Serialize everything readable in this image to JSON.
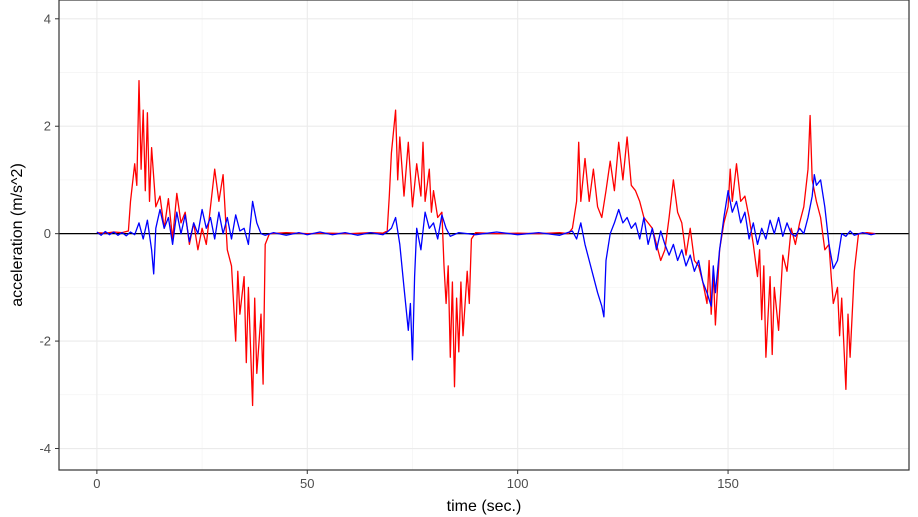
{
  "chart_data": {
    "type": "line",
    "title": "",
    "xlabel": "time (sec.)",
    "ylabel": "acceleration (m/s^2)",
    "xlim": [
      -9,
      193
    ],
    "ylim": [
      -4.4,
      4.35
    ],
    "x_ticks": [
      0,
      50,
      100,
      150
    ],
    "x_tick_labels": [
      "0",
      "50",
      "100",
      "150"
    ],
    "y_ticks": [
      -4,
      -2,
      0,
      2,
      4
    ],
    "y_tick_labels": [
      "-4",
      "-2",
      "0",
      "2",
      "4"
    ],
    "grid": true,
    "zero_line": true,
    "legend": "none",
    "colors": {
      "series_red": "#ff0000",
      "series_blue": "#0000ff",
      "grid": "#ebebeb",
      "zero_line": "#000000",
      "axis": "#333333"
    },
    "series": [
      {
        "color": "#ff0000",
        "points": [
          [
            0,
            0.02
          ],
          [
            2,
            0.01
          ],
          [
            4,
            0.03
          ],
          [
            6,
            0.02
          ],
          [
            7.5,
            0.05
          ],
          [
            8,
            0.6
          ],
          [
            9,
            1.3
          ],
          [
            9.5,
            0.9
          ],
          [
            10,
            2.85
          ],
          [
            10.5,
            1.2
          ],
          [
            11,
            2.3
          ],
          [
            11.5,
            0.8
          ],
          [
            12,
            2.25
          ],
          [
            12.5,
            0.6
          ],
          [
            13,
            1.6
          ],
          [
            14,
            0.5
          ],
          [
            15,
            0.7
          ],
          [
            16,
            0.1
          ],
          [
            17,
            0.65
          ],
          [
            18,
            -0.1
          ],
          [
            19,
            0.75
          ],
          [
            20,
            0.2
          ],
          [
            21,
            0.4
          ],
          [
            22,
            -0.2
          ],
          [
            23,
            0.2
          ],
          [
            24,
            -0.3
          ],
          [
            25,
            0.1
          ],
          [
            26,
            -0.2
          ],
          [
            27,
            0.5
          ],
          [
            28,
            1.2
          ],
          [
            29,
            0.6
          ],
          [
            30,
            1.1
          ],
          [
            31,
            -0.3
          ],
          [
            32,
            -0.6
          ],
          [
            33,
            -2.0
          ],
          [
            33.5,
            -0.7
          ],
          [
            34,
            -1.5
          ],
          [
            35,
            -0.8
          ],
          [
            35.5,
            -2.4
          ],
          [
            36,
            -1.0
          ],
          [
            37,
            -3.2
          ],
          [
            37.5,
            -1.2
          ],
          [
            38,
            -2.6
          ],
          [
            39,
            -1.5
          ],
          [
            39.5,
            -2.8
          ],
          [
            40,
            -0.2
          ],
          [
            41,
            0.0
          ],
          [
            45,
            0.02
          ],
          [
            50,
            0.0
          ],
          [
            55,
            0.01
          ],
          [
            60,
            0.0
          ],
          [
            65,
            0.02
          ],
          [
            68,
            0.01
          ],
          [
            69,
            0.05
          ],
          [
            69.5,
            0.7
          ],
          [
            70,
            1.5
          ],
          [
            71,
            2.3
          ],
          [
            71.5,
            1.0
          ],
          [
            72,
            1.8
          ],
          [
            73,
            0.7
          ],
          [
            74,
            1.7
          ],
          [
            75,
            0.5
          ],
          [
            76,
            1.3
          ],
          [
            77,
            0.7
          ],
          [
            77.5,
            1.7
          ],
          [
            78,
            0.6
          ],
          [
            79,
            1.2
          ],
          [
            79.5,
            0.4
          ],
          [
            80,
            0.8
          ],
          [
            81,
            0.3
          ],
          [
            82,
            0.4
          ],
          [
            82.5,
            -0.6
          ],
          [
            83,
            -1.3
          ],
          [
            83.5,
            -0.6
          ],
          [
            84,
            -2.3
          ],
          [
            84.5,
            -0.9
          ],
          [
            85,
            -2.85
          ],
          [
            85.5,
            -1.2
          ],
          [
            86,
            -2.2
          ],
          [
            86.5,
            -0.9
          ],
          [
            87,
            -1.9
          ],
          [
            88,
            -0.7
          ],
          [
            88.5,
            -1.3
          ],
          [
            89,
            -0.1
          ],
          [
            90,
            0.02
          ],
          [
            95,
            0.0
          ],
          [
            100,
            0.01
          ],
          [
            105,
            0.0
          ],
          [
            110,
            0.02
          ],
          [
            112,
            0.0
          ],
          [
            113,
            0.1
          ],
          [
            114,
            0.6
          ],
          [
            114.5,
            1.7
          ],
          [
            115,
            0.6
          ],
          [
            116,
            1.4
          ],
          [
            117,
            0.6
          ],
          [
            118,
            1.2
          ],
          [
            119,
            0.5
          ],
          [
            120,
            0.3
          ],
          [
            121,
            0.8
          ],
          [
            122,
            1.35
          ],
          [
            123,
            0.8
          ],
          [
            124,
            1.7
          ],
          [
            125,
            1.0
          ],
          [
            126,
            1.8
          ],
          [
            127,
            0.9
          ],
          [
            128,
            0.8
          ],
          [
            129,
            0.6
          ],
          [
            130,
            0.3
          ],
          [
            131,
            0.2
          ],
          [
            132,
            0.1
          ],
          [
            133,
            -0.2
          ],
          [
            134,
            -0.5
          ],
          [
            135,
            -0.3
          ],
          [
            136,
            0.3
          ],
          [
            137,
            1.0
          ],
          [
            138,
            0.4
          ],
          [
            139,
            0.2
          ],
          [
            140,
            -0.4
          ],
          [
            141,
            0.1
          ],
          [
            142,
            -0.5
          ],
          [
            143,
            -0.6
          ],
          [
            144,
            -0.9
          ],
          [
            145,
            -1.3
          ],
          [
            145.5,
            -0.5
          ],
          [
            146,
            -1.5
          ],
          [
            146.5,
            -0.7
          ],
          [
            147,
            -1.7
          ],
          [
            148,
            -0.3
          ],
          [
            149,
            0.2
          ],
          [
            150,
            0.5
          ],
          [
            150.5,
            1.2
          ],
          [
            151,
            0.6
          ],
          [
            152,
            1.3
          ],
          [
            153,
            0.6
          ],
          [
            154,
            0.7
          ],
          [
            155,
            0.3
          ],
          [
            156,
            -0.2
          ],
          [
            157,
            -0.8
          ],
          [
            157.5,
            -0.3
          ],
          [
            158,
            -1.6
          ],
          [
            158.5,
            -0.6
          ],
          [
            159,
            -2.3
          ],
          [
            160,
            -0.8
          ],
          [
            160.5,
            -2.25
          ],
          [
            161,
            -1.0
          ],
          [
            162,
            -1.8
          ],
          [
            163,
            -0.4
          ],
          [
            164,
            -0.7
          ],
          [
            165,
            0.1
          ],
          [
            166,
            -0.2
          ],
          [
            167,
            0.2
          ],
          [
            168,
            0.5
          ],
          [
            169,
            1.2
          ],
          [
            169.5,
            2.2
          ],
          [
            170,
            1.0
          ],
          [
            171,
            0.6
          ],
          [
            172,
            0.3
          ],
          [
            173,
            -0.3
          ],
          [
            174,
            -0.2
          ],
          [
            174.5,
            -0.8
          ],
          [
            175,
            -1.3
          ],
          [
            176,
            -1.0
          ],
          [
            176.5,
            -1.9
          ],
          [
            177,
            -1.2
          ],
          [
            178,
            -2.9
          ],
          [
            178.5,
            -1.5
          ],
          [
            179,
            -2.3
          ],
          [
            180,
            -0.7
          ],
          [
            181,
            0.0
          ],
          [
            183,
            0.02
          ],
          [
            185,
            0.0
          ]
        ]
      },
      {
        "color": "#0000ff",
        "points": [
          [
            0,
            0.03
          ],
          [
            1,
            -0.03
          ],
          [
            2,
            0.04
          ],
          [
            3,
            -0.02
          ],
          [
            4,
            0.03
          ],
          [
            5,
            -0.03
          ],
          [
            6,
            0.02
          ],
          [
            7,
            -0.04
          ],
          [
            8,
            0.03
          ],
          [
            9,
            -0.02
          ],
          [
            10,
            0.2
          ],
          [
            11,
            -0.1
          ],
          [
            12,
            0.25
          ],
          [
            13,
            -0.3
          ],
          [
            13.5,
            -0.75
          ],
          [
            14,
            0.1
          ],
          [
            15,
            0.45
          ],
          [
            16,
            0.1
          ],
          [
            17,
            0.3
          ],
          [
            18,
            -0.2
          ],
          [
            19,
            0.4
          ],
          [
            20,
            0.0
          ],
          [
            21,
            0.35
          ],
          [
            22,
            -0.15
          ],
          [
            23,
            0.2
          ],
          [
            24,
            0.0
          ],
          [
            25,
            0.45
          ],
          [
            26,
            0.1
          ],
          [
            27,
            0.3
          ],
          [
            28,
            -0.1
          ],
          [
            29,
            0.4
          ],
          [
            30,
            0.0
          ],
          [
            31,
            0.3
          ],
          [
            32,
            -0.1
          ],
          [
            33,
            0.35
          ],
          [
            34,
            0.05
          ],
          [
            35,
            0.1
          ],
          [
            36,
            -0.2
          ],
          [
            37,
            0.6
          ],
          [
            38,
            0.2
          ],
          [
            39,
            0.0
          ],
          [
            40,
            -0.03
          ],
          [
            42,
            0.02
          ],
          [
            45,
            -0.03
          ],
          [
            48,
            0.02
          ],
          [
            50,
            -0.02
          ],
          [
            53,
            0.03
          ],
          [
            56,
            -0.02
          ],
          [
            59,
            0.02
          ],
          [
            62,
            -0.03
          ],
          [
            65,
            0.02
          ],
          [
            68,
            -0.02
          ],
          [
            69,
            0.03
          ],
          [
            70,
            0.1
          ],
          [
            71,
            0.3
          ],
          [
            72,
            -0.2
          ],
          [
            73,
            -1.0
          ],
          [
            74,
            -1.8
          ],
          [
            74.5,
            -1.3
          ],
          [
            75,
            -2.35
          ],
          [
            75.5,
            -0.8
          ],
          [
            76,
            0.1
          ],
          [
            77,
            -0.3
          ],
          [
            78,
            0.4
          ],
          [
            79,
            0.1
          ],
          [
            80,
            0.2
          ],
          [
            81,
            -0.1
          ],
          [
            82,
            0.35
          ],
          [
            83,
            0.1
          ],
          [
            84,
            -0.05
          ],
          [
            86,
            0.02
          ],
          [
            90,
            -0.02
          ],
          [
            95,
            0.03
          ],
          [
            100,
            -0.02
          ],
          [
            105,
            0.02
          ],
          [
            110,
            -0.03
          ],
          [
            113,
            0.05
          ],
          [
            114,
            -0.1
          ],
          [
            115,
            0.2
          ],
          [
            116,
            -0.2
          ],
          [
            117,
            -0.5
          ],
          [
            118,
            -0.8
          ],
          [
            119,
            -1.1
          ],
          [
            120,
            -1.35
          ],
          [
            120.5,
            -1.55
          ],
          [
            121,
            -0.5
          ],
          [
            122,
            0.0
          ],
          [
            123,
            0.2
          ],
          [
            124,
            0.45
          ],
          [
            125,
            0.2
          ],
          [
            126,
            0.3
          ],
          [
            127,
            0.1
          ],
          [
            128,
            0.2
          ],
          [
            129,
            -0.1
          ],
          [
            130,
            0.3
          ],
          [
            131,
            -0.2
          ],
          [
            132,
            0.1
          ],
          [
            133,
            -0.3
          ],
          [
            134,
            0.05
          ],
          [
            135,
            -0.2
          ],
          [
            136,
            -0.4
          ],
          [
            137,
            -0.2
          ],
          [
            138,
            -0.5
          ],
          [
            139,
            -0.3
          ],
          [
            140,
            -0.6
          ],
          [
            141,
            -0.4
          ],
          [
            142,
            -0.7
          ],
          [
            143,
            -0.5
          ],
          [
            144,
            -0.9
          ],
          [
            145,
            -1.1
          ],
          [
            146,
            -1.35
          ],
          [
            146.5,
            -0.6
          ],
          [
            147,
            -1.1
          ],
          [
            148,
            -0.3
          ],
          [
            149,
            0.3
          ],
          [
            150,
            0.8
          ],
          [
            151,
            0.4
          ],
          [
            152,
            0.6
          ],
          [
            153,
            0.2
          ],
          [
            154,
            0.4
          ],
          [
            155,
            -0.1
          ],
          [
            156,
            0.2
          ],
          [
            157,
            -0.2
          ],
          [
            158,
            0.1
          ],
          [
            159,
            -0.1
          ],
          [
            160,
            0.25
          ],
          [
            161,
            0.0
          ],
          [
            162,
            0.3
          ],
          [
            163,
            -0.05
          ],
          [
            164,
            0.2
          ],
          [
            165,
            0.0
          ],
          [
            166,
            -0.05
          ],
          [
            167,
            0.1
          ],
          [
            168,
            0.0
          ],
          [
            169,
            0.3
          ],
          [
            170,
            0.7
          ],
          [
            170.5,
            1.1
          ],
          [
            171,
            0.9
          ],
          [
            172,
            1.0
          ],
          [
            173,
            0.5
          ],
          [
            174,
            -0.2
          ],
          [
            175,
            -0.65
          ],
          [
            176,
            -0.5
          ],
          [
            177,
            0.0
          ],
          [
            178,
            -0.05
          ],
          [
            179,
            0.05
          ],
          [
            180,
            -0.03
          ],
          [
            182,
            0.02
          ],
          [
            184,
            -0.02
          ],
          [
            185,
            0.0
          ]
        ]
      }
    ]
  }
}
